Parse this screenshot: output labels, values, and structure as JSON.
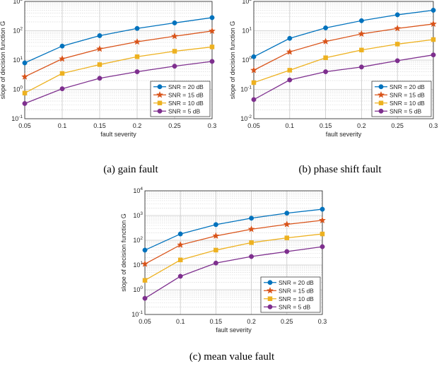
{
  "chart_data": [
    {
      "type": "line",
      "caption": "(a) gain fault",
      "xlabel": "fault severity",
      "ylabel": "slope of decision function G",
      "yscale": "log",
      "xlim": [
        0.05,
        0.3
      ],
      "ylim": [
        0.1,
        1000
      ],
      "xticks": [
        "0.05",
        "0.1",
        "0.15",
        "0.2",
        "0.25",
        "0.3"
      ],
      "yticks": [
        {
          "base": "10",
          "exp": "-1",
          "value": 0.1
        },
        {
          "base": "10",
          "exp": "0",
          "value": 1
        },
        {
          "base": "10",
          "exp": "1",
          "value": 10
        },
        {
          "base": "10",
          "exp": "2",
          "value": 100
        },
        {
          "base": "10",
          "exp": "3",
          "value": 1000
        }
      ],
      "grid": true,
      "legend_position": "bottom-right",
      "x": [
        0.05,
        0.1,
        0.15,
        0.2,
        0.25,
        0.3
      ],
      "series": [
        {
          "name": "SNR = 20 dB",
          "color": "#0072BD",
          "marker": "circle",
          "values": [
            8,
            30,
            68,
            120,
            185,
            280
          ]
        },
        {
          "name": "SNR = 15 dB",
          "color": "#D95319",
          "marker": "star",
          "values": [
            2.7,
            11,
            24,
            42,
            65,
            98
          ]
        },
        {
          "name": "SNR = 10 dB",
          "color": "#EDB120",
          "marker": "square",
          "values": [
            0.75,
            3.5,
            7,
            13,
            20,
            28
          ]
        },
        {
          "name": "SNR = 5 dB",
          "color": "#7E2F8E",
          "marker": "circle",
          "values": [
            0.33,
            1.05,
            2.4,
            4,
            6.2,
            9
          ]
        }
      ]
    },
    {
      "type": "line",
      "caption": "(b) phase shift fault",
      "xlabel": "fault severity",
      "ylabel": "slope of decision function G",
      "yscale": "log",
      "xlim": [
        0.05,
        0.3
      ],
      "ylim": [
        0.01,
        100
      ],
      "xticks": [
        "0.05",
        "0.1",
        "0.15",
        "0.2",
        "0.25",
        "0.3"
      ],
      "yticks": [
        {
          "base": "10",
          "exp": "-2",
          "value": 0.01
        },
        {
          "base": "10",
          "exp": "-1",
          "value": 0.1
        },
        {
          "base": "10",
          "exp": "0",
          "value": 1
        },
        {
          "base": "10",
          "exp": "1",
          "value": 10
        },
        {
          "base": "10",
          "exp": "2",
          "value": 100
        }
      ],
      "grid": true,
      "legend_position": "bottom-right",
      "x": [
        0.05,
        0.1,
        0.15,
        0.2,
        0.25,
        0.3
      ],
      "series": [
        {
          "name": "SNR = 20 dB",
          "color": "#0072BD",
          "marker": "circle",
          "values": [
            1.3,
            5.5,
            12.5,
            22,
            35,
            50
          ]
        },
        {
          "name": "SNR = 15 dB",
          "color": "#D95319",
          "marker": "star",
          "values": [
            0.45,
            1.9,
            4.3,
            7.8,
            12,
            17
          ]
        },
        {
          "name": "SNR = 10 dB",
          "color": "#EDB120",
          "marker": "square",
          "values": [
            0.17,
            0.45,
            1.2,
            2.2,
            3.5,
            5
          ]
        },
        {
          "name": "SNR = 5 dB",
          "color": "#7E2F8E",
          "marker": "circle",
          "values": [
            0.045,
            0.21,
            0.4,
            0.58,
            0.95,
            1.5
          ]
        }
      ]
    },
    {
      "type": "line",
      "caption": "(c) mean value fault",
      "xlabel": "fault severity",
      "ylabel": "slope of decision function G",
      "yscale": "log",
      "xlim": [
        0.05,
        0.3
      ],
      "ylim": [
        0.1,
        10000
      ],
      "xticks": [
        "0.05",
        "0.1",
        "0.15",
        "0.2",
        "0.25",
        "0.3"
      ],
      "yticks": [
        {
          "base": "10",
          "exp": "-1",
          "value": 0.1
        },
        {
          "base": "10",
          "exp": "0",
          "value": 1
        },
        {
          "base": "10",
          "exp": "1",
          "value": 10
        },
        {
          "base": "10",
          "exp": "2",
          "value": 100
        },
        {
          "base": "10",
          "exp": "3",
          "value": 1000
        },
        {
          "base": "10",
          "exp": "4",
          "value": 10000
        }
      ],
      "grid": true,
      "legend_position": "bottom-right",
      "x": [
        0.05,
        0.1,
        0.15,
        0.2,
        0.25,
        0.3
      ],
      "series": [
        {
          "name": "SNR = 20 dB",
          "color": "#0072BD",
          "marker": "circle",
          "values": [
            40,
            180,
            430,
            780,
            1250,
            1800
          ]
        },
        {
          "name": "SNR = 15 dB",
          "color": "#D95319",
          "marker": "star",
          "values": [
            11,
            65,
            150,
            280,
            440,
            640
          ]
        },
        {
          "name": "SNR = 10 dB",
          "color": "#EDB120",
          "marker": "square",
          "values": [
            2.4,
            16,
            40,
            80,
            125,
            180
          ]
        },
        {
          "name": "SNR = 5 dB",
          "color": "#7E2F8E",
          "marker": "circle",
          "values": [
            0.45,
            3.5,
            12,
            22,
            35,
            55
          ]
        }
      ]
    }
  ]
}
